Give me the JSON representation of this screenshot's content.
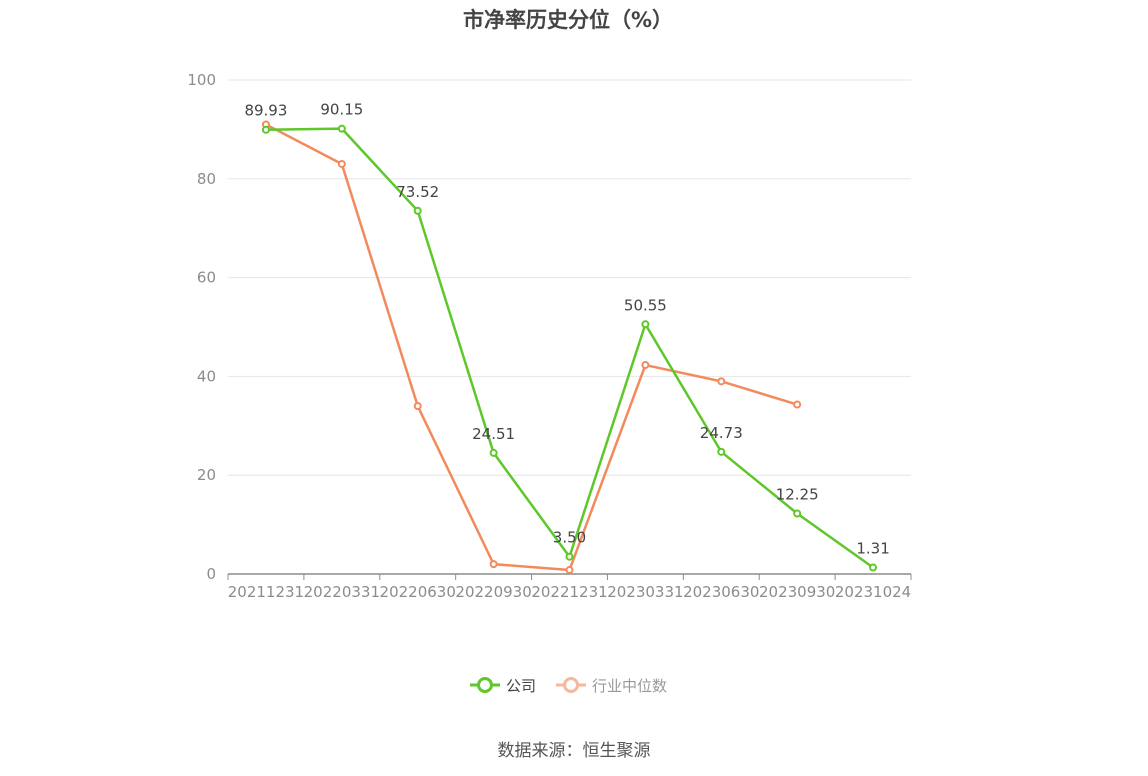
{
  "title": "市净率历史分位（%）",
  "source": "数据来源：恒生聚源",
  "colors": {
    "company": "#5ec72a",
    "industry": "#f28a5b",
    "grid": "#e6e6e6",
    "axis": "#8c8c8c"
  },
  "legend": [
    {
      "label": "公司",
      "color": "#5ec72a",
      "text_color": "#444444"
    },
    {
      "label": "行业中位数",
      "color": "#f5b89c",
      "text_color": "#999999"
    }
  ],
  "chart_data": {
    "type": "line",
    "categories": [
      "20211231",
      "20220331",
      "20220630",
      "20220930",
      "20221231",
      "20230331",
      "20230630",
      "20230930",
      "20231024"
    ],
    "ylim": [
      0,
      100
    ],
    "yticks": [
      0,
      20,
      40,
      60,
      80,
      100
    ],
    "grid": true,
    "legend_position": "bottom",
    "series": [
      {
        "name": "公司",
        "values": [
          89.93,
          90.15,
          73.52,
          24.51,
          3.5,
          50.55,
          24.73,
          12.25,
          1.31
        ],
        "labels": [
          "89.93",
          "90.15",
          "73.52",
          "24.51",
          "3.50",
          "50.55",
          "24.73",
          "12.25",
          "1.31"
        ]
      },
      {
        "name": "行业中位数",
        "values": [
          91,
          83,
          34,
          2,
          0.8,
          42.3,
          39,
          34.3,
          null
        ]
      }
    ]
  }
}
